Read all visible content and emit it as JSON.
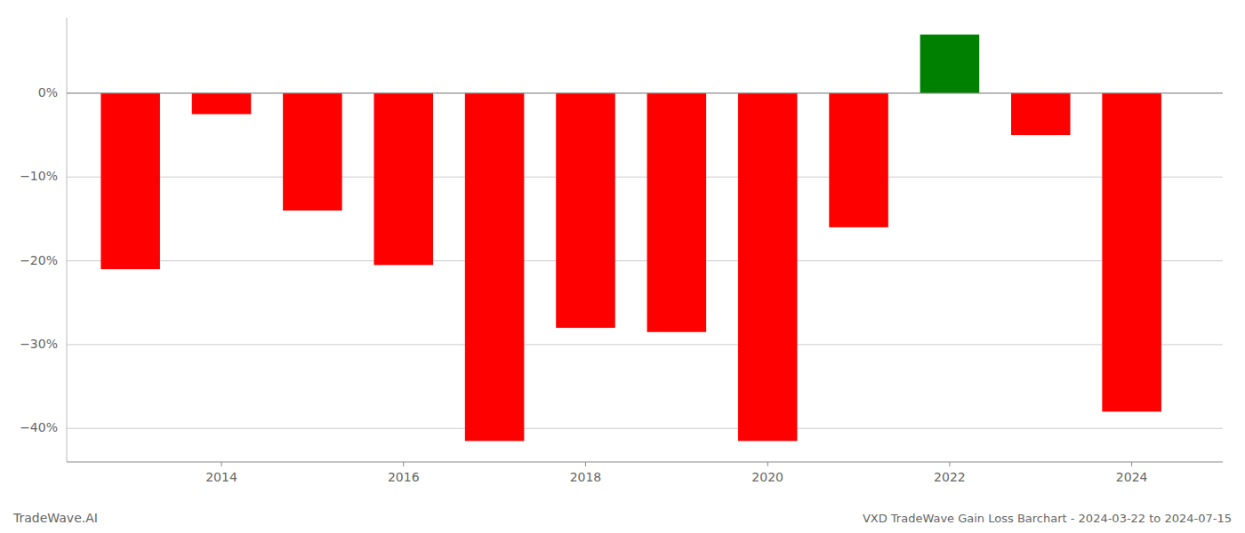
{
  "chart_data": {
    "type": "bar",
    "title": "VXD TradeWave Gain Loss Barchart - 2024-03-22 to 2024-07-15",
    "annotations": [
      "TradeWave.AI"
    ],
    "x": [
      2013,
      2014,
      2015,
      2016,
      2017,
      2018,
      2019,
      2020,
      2021,
      2022,
      2023,
      2024
    ],
    "values": [
      -21.0,
      -2.5,
      -14.0,
      -20.5,
      -41.5,
      -28.0,
      -28.5,
      -41.5,
      -16.0,
      7.0,
      -5.0,
      -38.0
    ],
    "colors": [
      "#ff0000",
      "#ff0000",
      "#ff0000",
      "#ff0000",
      "#ff0000",
      "#ff0000",
      "#ff0000",
      "#ff0000",
      "#ff0000",
      "#008000",
      "#ff0000",
      "#ff0000"
    ],
    "xlim": [
      2012.3,
      2025.0
    ],
    "xticks": [
      2014,
      2016,
      2018,
      2020,
      2022,
      2024
    ],
    "ylim": [
      -44,
      9
    ],
    "yticks": [
      {
        "value": -40,
        "label": "−40%"
      },
      {
        "value": -30,
        "label": "−30%"
      },
      {
        "value": -20,
        "label": "−20%"
      },
      {
        "value": -10,
        "label": "−10%"
      },
      {
        "value": 0,
        "label": "0%"
      }
    ],
    "grid": true
  }
}
